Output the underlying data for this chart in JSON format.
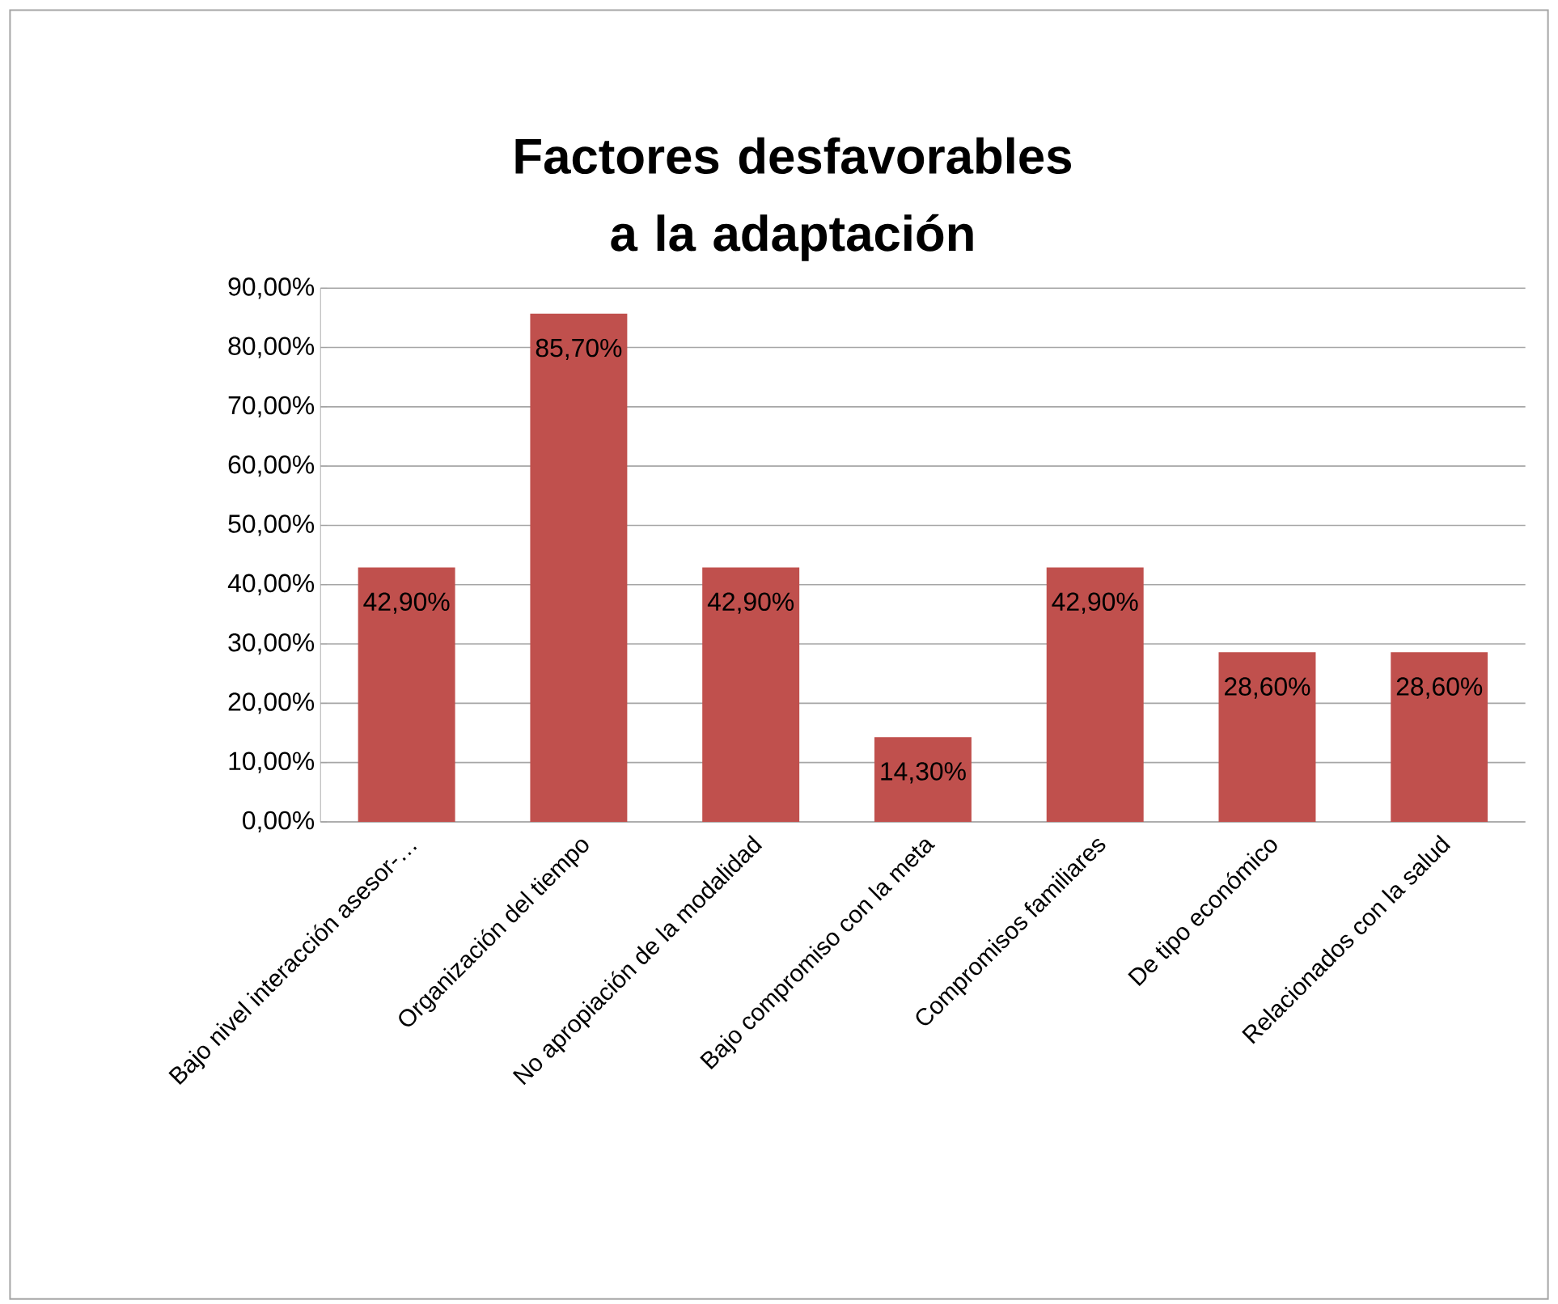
{
  "chart_data": {
    "type": "bar",
    "title": "Factores desfavorables a la adaptación",
    "categories": [
      "Bajo nivel interacción asesor-…",
      "Organización del tiempo",
      "No apropiación de la modalidad",
      "Bajo compromiso con la meta",
      "Compromisos familiares",
      "De tipo económico",
      "Relacionados con la salud"
    ],
    "values": [
      42.9,
      85.7,
      42.9,
      14.3,
      42.9,
      28.6,
      28.6
    ],
    "value_labels": [
      "42,90%",
      "85,70%",
      "42,90%",
      "14,30%",
      "42,90%",
      "28,60%",
      "28,60%"
    ],
    "color": "#c0504d",
    "ylim": [
      0,
      90
    ],
    "yticks": [
      {
        "value": 0,
        "label": "0,00%"
      },
      {
        "value": 10,
        "label": "10,00%"
      },
      {
        "value": 20,
        "label": "20,00%"
      },
      {
        "value": 30,
        "label": "30,00%"
      },
      {
        "value": 40,
        "label": "40,00%"
      },
      {
        "value": 50,
        "label": "50,00%"
      },
      {
        "value": 60,
        "label": "60,00%"
      },
      {
        "value": 70,
        "label": "70,00%"
      },
      {
        "value": 80,
        "label": "80,00%"
      },
      {
        "value": 90,
        "label": "90,00%"
      }
    ],
    "grid": "y"
  }
}
